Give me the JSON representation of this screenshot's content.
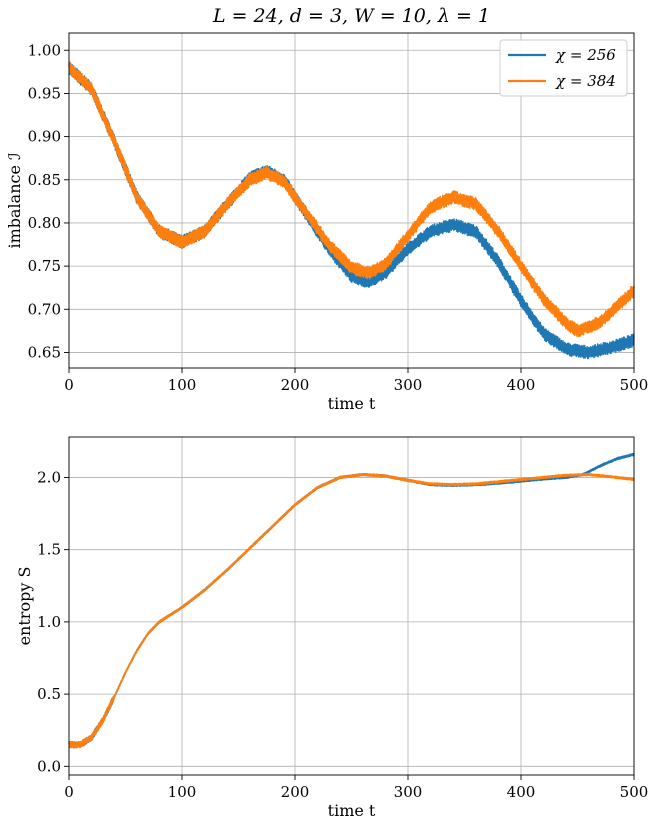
{
  "colors": {
    "chi256": "#1f77b4",
    "chi384": "#ff7f0e",
    "grid": "#b0b0b0"
  },
  "chart_data": [
    {
      "type": "line",
      "title": "L = 24, d = 3, W = 10, λ = 1",
      "xlabel": "time t",
      "ylabel": "imbalance ℐ",
      "xlim": [
        0,
        500
      ],
      "ylim": [
        0.632,
        1.02
      ],
      "xticks": [
        0,
        100,
        200,
        300,
        400,
        500
      ],
      "xtick_labels": [
        "0",
        "100",
        "200",
        "300",
        "400",
        "500"
      ],
      "yticks": [
        0.65,
        0.7,
        0.75,
        0.8,
        0.85,
        0.9,
        0.95,
        1.0
      ],
      "ytick_labels": [
        "0.65",
        "0.70",
        "0.75",
        "0.80",
        "0.85",
        "0.90",
        "0.95",
        "1.00"
      ],
      "grid": true,
      "legend_position": "upper right",
      "series": [
        {
          "name": "χ = 256",
          "color": "#1f77b4",
          "x": [
            0,
            20,
            40,
            60,
            80,
            100,
            120,
            140,
            160,
            175,
            190,
            210,
            230,
            250,
            265,
            280,
            300,
            320,
            340,
            360,
            380,
            400,
            420,
            440,
            460,
            480,
            500
          ],
          "y": [
            0.98,
            0.955,
            0.895,
            0.83,
            0.79,
            0.778,
            0.79,
            0.822,
            0.852,
            0.86,
            0.85,
            0.81,
            0.77,
            0.738,
            0.732,
            0.742,
            0.77,
            0.79,
            0.798,
            0.79,
            0.755,
            0.71,
            0.672,
            0.654,
            0.65,
            0.656,
            0.664
          ]
        },
        {
          "name": "χ = 384",
          "color": "#ff7f0e",
          "x": [
            0,
            20,
            40,
            60,
            80,
            100,
            120,
            140,
            160,
            175,
            190,
            210,
            230,
            250,
            265,
            280,
            300,
            320,
            340,
            360,
            380,
            400,
            420,
            440,
            450,
            470,
            500
          ],
          "y": [
            0.98,
            0.955,
            0.895,
            0.83,
            0.79,
            0.778,
            0.79,
            0.822,
            0.85,
            0.858,
            0.848,
            0.812,
            0.775,
            0.748,
            0.742,
            0.752,
            0.785,
            0.818,
            0.83,
            0.822,
            0.79,
            0.75,
            0.712,
            0.684,
            0.675,
            0.685,
            0.722
          ]
        }
      ]
    },
    {
      "type": "line",
      "title": "",
      "xlabel": "time t",
      "ylabel": "entropy S",
      "xlim": [
        0,
        500
      ],
      "ylim": [
        -0.06,
        2.28
      ],
      "xticks": [
        0,
        100,
        200,
        300,
        400,
        500
      ],
      "xtick_labels": [
        "0",
        "100",
        "200",
        "300",
        "400",
        "500"
      ],
      "yticks": [
        0.0,
        0.5,
        1.0,
        1.5,
        2.0
      ],
      "ytick_labels": [
        "0.0",
        "0.5",
        "1.0",
        "1.5",
        "2.0"
      ],
      "grid": true,
      "series": [
        {
          "name": "χ = 256",
          "color": "#1f77b4",
          "x": [
            0,
            10,
            20,
            30,
            40,
            50,
            60,
            70,
            80,
            100,
            120,
            140,
            160,
            180,
            200,
            220,
            240,
            260,
            280,
            300,
            320,
            340,
            360,
            380,
            400,
            420,
            440,
            455,
            470,
            485,
            500
          ],
          "y": [
            0.15,
            0.15,
            0.2,
            0.32,
            0.48,
            0.65,
            0.8,
            0.92,
            1.0,
            1.1,
            1.22,
            1.36,
            1.51,
            1.66,
            1.81,
            1.93,
            2.0,
            2.02,
            2.01,
            1.98,
            1.95,
            1.945,
            1.95,
            1.96,
            1.975,
            1.99,
            2.0,
            2.02,
            2.08,
            2.13,
            2.16
          ]
        },
        {
          "name": "χ = 384",
          "color": "#ff7f0e",
          "x": [
            0,
            10,
            20,
            30,
            40,
            50,
            60,
            70,
            80,
            100,
            120,
            140,
            160,
            180,
            200,
            220,
            240,
            260,
            280,
            300,
            320,
            340,
            360,
            380,
            400,
            420,
            440,
            460,
            480,
            500
          ],
          "y": [
            0.15,
            0.15,
            0.2,
            0.32,
            0.48,
            0.65,
            0.8,
            0.92,
            1.0,
            1.1,
            1.22,
            1.36,
            1.51,
            1.66,
            1.81,
            1.93,
            2.0,
            2.02,
            2.01,
            1.98,
            1.955,
            1.95,
            1.955,
            1.97,
            1.985,
            2.0,
            2.015,
            2.02,
            2.005,
            1.985
          ]
        }
      ]
    }
  ]
}
